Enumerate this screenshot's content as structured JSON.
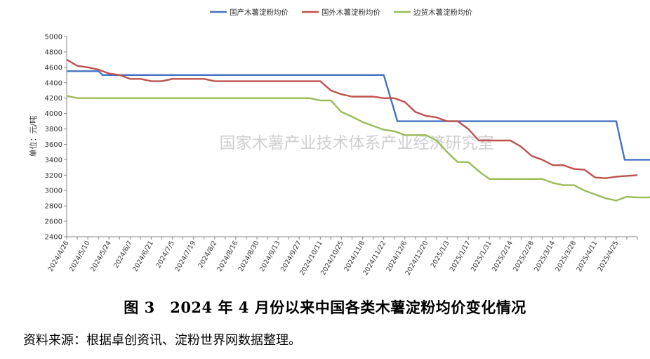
{
  "chart_data": {
    "type": "line",
    "ylabel": "单位：元/吨",
    "ylim": [
      2400,
      5000
    ],
    "yticks": [
      2400,
      2600,
      2800,
      3000,
      3200,
      3400,
      3600,
      3800,
      4000,
      4200,
      4400,
      4600,
      4800,
      5000
    ],
    "grid": false,
    "legend_position": "top",
    "watermark": "国家木薯产业技术体系产业经济研究室",
    "x_tick_labels": [
      "2024/4/26",
      "2024/5/10",
      "2024/5/24",
      "2024/6/7",
      "2024/6/21",
      "2024/7/5",
      "2024/7/19",
      "2024/8/2",
      "2024/8/16",
      "2024/8/30",
      "2024/9/13",
      "2024/9/27",
      "2024/10/11",
      "2024/10/25",
      "2024/11/8",
      "2024/11/22",
      "2024/12/6",
      "2024/12/20",
      "2025/1/3",
      "2025/1/17",
      "2025/1/31",
      "2025/2/14",
      "2025/2/28",
      "2025/3/14",
      "2025/3/28",
      "2025/4/11",
      "2025/4/25"
    ],
    "series": [
      {
        "name": "国产木薯淀粉均价",
        "color": "#4472C4",
        "points": [
          [
            0,
            4550
          ],
          [
            3,
            4550
          ],
          [
            3.4,
            4500
          ],
          [
            7,
            4500
          ],
          [
            14,
            4500
          ],
          [
            22,
            4500
          ],
          [
            29,
            4500
          ],
          [
            30,
            4500
          ],
          [
            31.3,
            3900
          ],
          [
            32,
            3900
          ],
          [
            38,
            3900
          ],
          [
            44,
            3900
          ],
          [
            50,
            3900
          ],
          [
            52,
            3900
          ],
          [
            52.8,
            3400
          ],
          [
            58,
            3400
          ]
        ]
      },
      {
        "name": "国外木薯淀粉均价",
        "color": "#C0504D",
        "points": [
          [
            0,
            4700
          ],
          [
            1,
            4620
          ],
          [
            2,
            4600
          ],
          [
            3,
            4570
          ],
          [
            4,
            4520
          ],
          [
            5,
            4500
          ],
          [
            6,
            4450
          ],
          [
            7,
            4450
          ],
          [
            8,
            4420
          ],
          [
            9,
            4420
          ],
          [
            10,
            4450
          ],
          [
            11,
            4450
          ],
          [
            12,
            4450
          ],
          [
            13,
            4450
          ],
          [
            14,
            4420
          ],
          [
            18,
            4420
          ],
          [
            22,
            4420
          ],
          [
            24,
            4420
          ],
          [
            25,
            4300
          ],
          [
            26,
            4250
          ],
          [
            27,
            4220
          ],
          [
            28,
            4220
          ],
          [
            29,
            4220
          ],
          [
            30,
            4200
          ],
          [
            31,
            4200
          ],
          [
            32,
            4150
          ],
          [
            33,
            4020
          ],
          [
            34,
            3970
          ],
          [
            35,
            3950
          ],
          [
            36,
            3900
          ],
          [
            37,
            3900
          ],
          [
            38,
            3800
          ],
          [
            39,
            3650
          ],
          [
            41,
            3650
          ],
          [
            42,
            3650
          ],
          [
            43,
            3570
          ],
          [
            44,
            3450
          ],
          [
            45,
            3400
          ],
          [
            46,
            3330
          ],
          [
            47,
            3330
          ],
          [
            48,
            3280
          ],
          [
            49,
            3270
          ],
          [
            50,
            3170
          ],
          [
            51,
            3160
          ],
          [
            52,
            3180
          ],
          [
            53,
            3190
          ],
          [
            54,
            3200
          ]
        ]
      },
      {
        "name": "边贸木薯淀粉均价",
        "color": "#9BBB59",
        "points": [
          [
            0,
            4230
          ],
          [
            1,
            4200
          ],
          [
            2,
            4200
          ],
          [
            10,
            4200
          ],
          [
            20,
            4200
          ],
          [
            23,
            4200
          ],
          [
            24,
            4170
          ],
          [
            25,
            4170
          ],
          [
            26,
            4020
          ],
          [
            27,
            3960
          ],
          [
            28,
            3890
          ],
          [
            29,
            3840
          ],
          [
            30,
            3790
          ],
          [
            31,
            3770
          ],
          [
            32,
            3720
          ],
          [
            33,
            3720
          ],
          [
            34,
            3720
          ],
          [
            35,
            3650
          ],
          [
            36,
            3500
          ],
          [
            37,
            3370
          ],
          [
            38,
            3370
          ],
          [
            39,
            3250
          ],
          [
            40,
            3150
          ],
          [
            41,
            3150
          ],
          [
            44,
            3150
          ],
          [
            45,
            3150
          ],
          [
            46,
            3100
          ],
          [
            47,
            3070
          ],
          [
            48,
            3070
          ],
          [
            49,
            3000
          ],
          [
            50,
            2950
          ],
          [
            51,
            2900
          ],
          [
            52,
            2870
          ],
          [
            53,
            2920
          ],
          [
            54,
            2910
          ],
          [
            55,
            2910
          ],
          [
            56,
            2920
          ]
        ]
      }
    ]
  },
  "caption": "图 3　2024 年 4 月份以来中国各类木薯淀粉均价变化情况",
  "source": "资料来源：根据卓创资讯、淀粉世界网数据整理。"
}
